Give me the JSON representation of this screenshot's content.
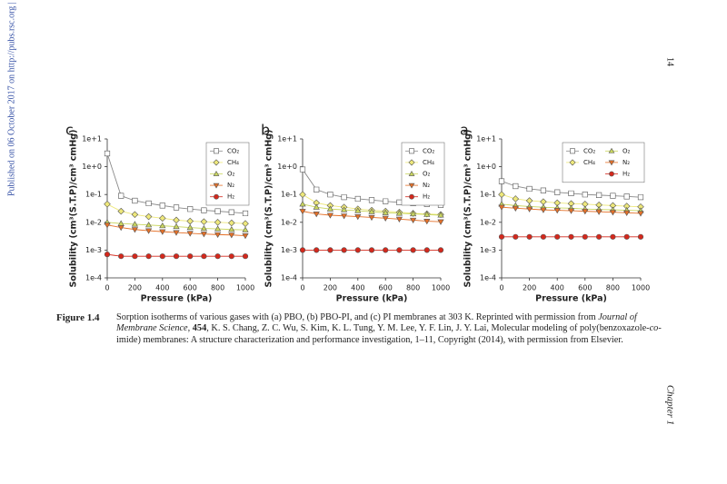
{
  "page": {
    "side_note": "Published on 06 October 2017 on http://pubs.rsc.org | do",
    "page_number": "14",
    "running_head": "Chapter 1",
    "caption_label": "Figure 1.4",
    "caption": [
      "Sorption isotherms of various gases with (a) PBO, (b) PBO-PI, and (c) PI membranes at 303 K. Reprinted with permission from ",
      "Journal of Membrane Science",
      ", ",
      "454",
      ", K. S. Chang, Z. C. Wu, S. Kim, K. L. Tung, Y. M. Lee, Y. F. Lin, J. Y. Lai, Molecular modeling of poly(benzoxazole-",
      "co",
      "-imide) membranes: A structure characterization and performance investigation, 1–11, Copyright (2014), with permission from Elsevier."
    ]
  },
  "chart_data": [
    {
      "type": "line",
      "title": "c",
      "xlabel": "Pressure (kPa)",
      "ylabel": "Solubility (cm³(S.T.P)/cm³ cmHg)",
      "log_y": true,
      "x": [
        0,
        100,
        200,
        300,
        400,
        500,
        600,
        700,
        800,
        900,
        1000
      ],
      "xlim": [
        0,
        1000
      ],
      "xticks": [
        0,
        200,
        400,
        600,
        800,
        1000
      ],
      "ylim": [
        0.0001,
        10
      ],
      "yticks": [
        {
          "value": 0.0001,
          "label": "1e-4"
        },
        {
          "value": 0.001,
          "label": "1e-3"
        },
        {
          "value": 0.01,
          "label": "1e-2"
        },
        {
          "value": 0.1,
          "label": "1e-1"
        },
        {
          "value": 1,
          "label": "1e+0"
        },
        {
          "value": 10,
          "label": "1e+1"
        }
      ],
      "legend": "upper right",
      "legend_columns": 1,
      "series": [
        {
          "name": "CO₂",
          "marker": "square",
          "color": "#ffffff",
          "values": [
            3,
            0.09,
            0.06,
            0.048,
            0.04,
            0.034,
            0.03,
            0.027,
            0.025,
            0.023,
            0.021
          ]
        },
        {
          "name": "CH₄",
          "marker": "diamond",
          "color": "#eee87a",
          "values": [
            0.045,
            0.025,
            0.019,
            0.016,
            0.014,
            0.012,
            0.011,
            0.0105,
            0.01,
            0.0095,
            0.009
          ]
        },
        {
          "name": "O₂",
          "marker": "triangle-up",
          "color": "#c9d65e",
          "values": [
            0.01,
            0.009,
            0.0085,
            0.008,
            0.0075,
            0.007,
            0.0065,
            0.006,
            0.0058,
            0.0055,
            0.0053
          ]
        },
        {
          "name": "N₂",
          "marker": "triangle-down",
          "color": "#e57028",
          "values": [
            0.008,
            0.0065,
            0.0055,
            0.005,
            0.0046,
            0.0043,
            0.004,
            0.0038,
            0.0036,
            0.0035,
            0.0033
          ]
        },
        {
          "name": "H₂",
          "marker": "circle",
          "color": "#d4281c",
          "values": [
            0.0007,
            0.0006,
            0.0006,
            0.0006,
            0.0006,
            0.0006,
            0.0006,
            0.0006,
            0.0006,
            0.0006,
            0.0006
          ]
        }
      ]
    },
    {
      "type": "line",
      "title": "b",
      "xlabel": "Pressure (kPa)",
      "ylabel": "Solubility (cm³(S.T.P)/cm³ cmHg)",
      "log_y": true,
      "x": [
        0,
        100,
        200,
        300,
        400,
        500,
        600,
        700,
        800,
        900,
        1000
      ],
      "xlim": [
        0,
        1000
      ],
      "xticks": [
        0,
        200,
        400,
        600,
        800,
        1000
      ],
      "ylim": [
        0.0001,
        10
      ],
      "yticks": [
        {
          "value": 0.0001,
          "label": "1e-4"
        },
        {
          "value": 0.001,
          "label": "1e-3"
        },
        {
          "value": 0.01,
          "label": "1e-2"
        },
        {
          "value": 0.1,
          "label": "1e-1"
        },
        {
          "value": 1,
          "label": "1e+0"
        },
        {
          "value": 10,
          "label": "1e+1"
        }
      ],
      "legend": "upper right",
      "legend_columns": 1,
      "series": [
        {
          "name": "CO₂",
          "marker": "square",
          "color": "#ffffff",
          "values": [
            0.8,
            0.15,
            0.1,
            0.08,
            0.07,
            0.063,
            0.057,
            0.052,
            0.048,
            0.045,
            0.042
          ]
        },
        {
          "name": "CH₄",
          "marker": "diamond",
          "color": "#eee87a",
          "values": [
            0.1,
            0.05,
            0.04,
            0.035,
            0.03,
            0.027,
            0.025,
            0.023,
            0.021,
            0.02,
            0.019
          ]
        },
        {
          "name": "O₂",
          "marker": "triangle-up",
          "color": "#c9d65e",
          "values": [
            0.045,
            0.035,
            0.03,
            0.028,
            0.026,
            0.024,
            0.022,
            0.021,
            0.02,
            0.019,
            0.018
          ]
        },
        {
          "name": "N₂",
          "marker": "triangle-down",
          "color": "#e57028",
          "values": [
            0.025,
            0.02,
            0.018,
            0.017,
            0.016,
            0.015,
            0.014,
            0.013,
            0.012,
            0.011,
            0.0105
          ]
        },
        {
          "name": "H₂",
          "marker": "circle",
          "color": "#d4281c",
          "values": [
            0.001,
            0.001,
            0.001,
            0.001,
            0.001,
            0.001,
            0.001,
            0.001,
            0.001,
            0.001,
            0.001
          ]
        }
      ]
    },
    {
      "type": "line",
      "title": "a",
      "xlabel": "Pressure (kPa)",
      "ylabel": "Solubility (cm³(S.T.P)/cm³ cmHg)",
      "log_y": true,
      "x": [
        0,
        100,
        200,
        300,
        400,
        500,
        600,
        700,
        800,
        900,
        1000
      ],
      "xlim": [
        0,
        1000
      ],
      "xticks": [
        0,
        200,
        400,
        600,
        800,
        1000
      ],
      "ylim": [
        0.0001,
        10
      ],
      "yticks": [
        {
          "value": 0.0001,
          "label": "1e-4"
        },
        {
          "value": 0.001,
          "label": "1e-3"
        },
        {
          "value": 0.01,
          "label": "1e-2"
        },
        {
          "value": 0.1,
          "label": "1e-1"
        },
        {
          "value": 1,
          "label": "1e+0"
        },
        {
          "value": 10,
          "label": "1e+1"
        }
      ],
      "legend": "upper right",
      "legend_columns": 2,
      "series": [
        {
          "name": "CO₂",
          "marker": "square",
          "color": "#ffffff",
          "values": [
            0.3,
            0.2,
            0.16,
            0.14,
            0.12,
            0.11,
            0.1,
            0.095,
            0.09,
            0.085,
            0.08
          ]
        },
        {
          "name": "CH₄",
          "marker": "diamond",
          "color": "#eee87a",
          "values": [
            0.1,
            0.07,
            0.06,
            0.055,
            0.05,
            0.047,
            0.045,
            0.042,
            0.04,
            0.038,
            0.036
          ]
        },
        {
          "name": "O₂",
          "marker": "triangle-up",
          "color": "#c9d65e",
          "values": [
            0.045,
            0.04,
            0.037,
            0.035,
            0.033,
            0.032,
            0.03,
            0.029,
            0.028,
            0.027,
            0.026
          ]
        },
        {
          "name": "N₂",
          "marker": "triangle-down",
          "color": "#e57028",
          "values": [
            0.035,
            0.032,
            0.03,
            0.028,
            0.027,
            0.026,
            0.025,
            0.024,
            0.023,
            0.022,
            0.021
          ]
        },
        {
          "name": "H₂",
          "marker": "circle",
          "color": "#d4281c",
          "values": [
            0.003,
            0.003,
            0.003,
            0.003,
            0.003,
            0.003,
            0.003,
            0.003,
            0.003,
            0.003,
            0.003
          ]
        }
      ]
    }
  ]
}
